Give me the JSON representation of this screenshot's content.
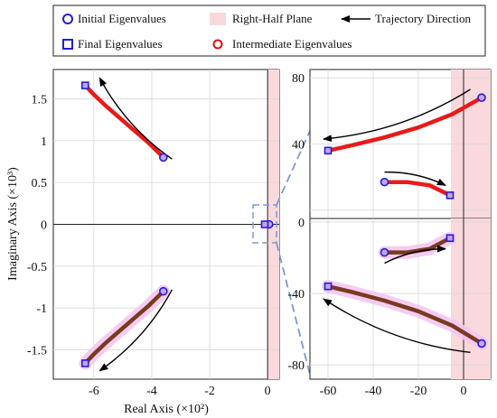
{
  "legend": {
    "entries": [
      {
        "label": "Initial Eigenvalues",
        "marker": "circle-blue"
      },
      {
        "label": "Right-Half Plane",
        "marker": "pink-patch"
      },
      {
        "label": "Trajectory Direction",
        "marker": "arrow-left"
      },
      {
        "label": "Final Eigenvalues",
        "marker": "square-blue"
      },
      {
        "label": "Intermediate Eigenvalues",
        "marker": "circle-red"
      }
    ]
  },
  "colors": {
    "initial_marker": "#1f1fd6",
    "final_marker": "#1f1fd6",
    "intermediate_marker": "#e01010",
    "trajectory_red": "#e81a1a",
    "trajectory_dark": "#7a3a20",
    "rhp_fill": "#f9d9dc",
    "halo": "#f4c6f0",
    "zoom_box": "#7a9ad8",
    "grid": "#d9d9d9"
  },
  "chart_data": [
    {
      "type": "scatter",
      "panel": "main",
      "xlabel": "Real Axis (×10²)",
      "ylabel": "Imaginary Axis (×10³)",
      "xlim": [
        -7.4,
        0.4
      ],
      "ylim": [
        -1.85,
        1.85
      ],
      "xticks": [
        -6,
        -4,
        -2,
        0
      ],
      "xtick_labels": [
        "-6",
        "-4",
        "-2",
        "0"
      ],
      "yticks": [
        1.5,
        1,
        0.5,
        0,
        -0.5,
        -1,
        -1.5
      ],
      "ytick_labels": [
        "1.5",
        "1",
        "0.5",
        "0",
        "-0.5",
        "-1",
        "-1.5"
      ],
      "grid": true,
      "rhp_shaded": true,
      "series": [
        {
          "color": "red",
          "x": [
            -3.6,
            -4.1,
            -4.6,
            -5.1,
            -5.6,
            -6.0,
            -6.3
          ],
          "y": [
            0.8,
            0.97,
            1.12,
            1.27,
            1.42,
            1.55,
            1.66
          ]
        },
        {
          "color": "dark",
          "x": [
            -3.6,
            -4.1,
            -4.6,
            -5.1,
            -5.6,
            -6.0,
            -6.3
          ],
          "y": [
            -0.8,
            -0.97,
            -1.12,
            -1.27,
            -1.42,
            -1.55,
            -1.66
          ]
        }
      ],
      "initial_points": [
        {
          "x": -3.6,
          "y": 0.8
        },
        {
          "x": -3.6,
          "y": -0.8
        },
        {
          "x": 0.05,
          "y": 0.0
        }
      ],
      "final_points": [
        {
          "x": -6.3,
          "y": 1.66
        },
        {
          "x": -6.3,
          "y": -1.66
        },
        {
          "x": -0.1,
          "y": 0.0
        }
      ],
      "direction_arrows": [
        {
          "from": [
            -3.3,
            0.78
          ],
          "to": [
            -5.8,
            1.75
          ]
        },
        {
          "from": [
            -3.3,
            -0.78
          ],
          "to": [
            -5.8,
            -1.75
          ]
        }
      ]
    },
    {
      "type": "scatter",
      "panel": "zoom-upper",
      "xlim": [
        -68,
        12
      ],
      "ylim": [
        -5,
        85
      ],
      "yticks": [
        0,
        40,
        80
      ],
      "ytick_labels": [
        "",
        "40",
        "80"
      ],
      "grid": true,
      "rhp_shaded": true,
      "series": [
        {
          "color": "red",
          "x": [
            8,
            -5,
            -20,
            -35,
            -50,
            -60
          ],
          "y": [
            68,
            58,
            50,
            44,
            39,
            36
          ]
        },
        {
          "color": "red",
          "x": [
            -35,
            -25,
            -15,
            -6
          ],
          "y": [
            17,
            17,
            15,
            9
          ]
        }
      ],
      "initial_points": [
        {
          "x": 8,
          "y": 68
        },
        {
          "x": -35,
          "y": 17
        }
      ],
      "final_points": [
        {
          "x": -60,
          "y": 36
        },
        {
          "x": -6,
          "y": 9
        }
      ],
      "direction_arrows": [
        {
          "from": [
            3,
            73
          ],
          "to": [
            -62,
            43
          ]
        },
        {
          "from": [
            -35,
            23
          ],
          "to": [
            -8,
            15
          ]
        }
      ]
    },
    {
      "type": "scatter",
      "panel": "zoom-lower",
      "xlim": [
        -68,
        12
      ],
      "ylim": [
        -88,
        2
      ],
      "xticks": [
        -60,
        -40,
        -20,
        0
      ],
      "xtick_labels": [
        "-60",
        "-40",
        "-20",
        "0"
      ],
      "yticks": [
        0,
        -40,
        -80
      ],
      "ytick_labels": [
        "0",
        "-40",
        "-80"
      ],
      "grid": true,
      "rhp_shaded": true,
      "series": [
        {
          "color": "dark",
          "x": [
            8,
            -5,
            -20,
            -35,
            -50,
            -60
          ],
          "y": [
            -68,
            -58,
            -50,
            -44,
            -39,
            -36
          ]
        },
        {
          "color": "dark",
          "x": [
            -35,
            -25,
            -15,
            -6
          ],
          "y": [
            -17,
            -17,
            -15,
            -9
          ]
        }
      ],
      "initial_points": [
        {
          "x": 8,
          "y": -68
        },
        {
          "x": -35,
          "y": -17
        }
      ],
      "final_points": [
        {
          "x": -60,
          "y": -36
        },
        {
          "x": -6,
          "y": -9
        }
      ],
      "direction_arrows": [
        {
          "from": [
            3,
            -73
          ],
          "to": [
            -62,
            -43
          ]
        },
        {
          "from": [
            -35,
            -23
          ],
          "to": [
            -8,
            -15
          ]
        }
      ]
    }
  ]
}
